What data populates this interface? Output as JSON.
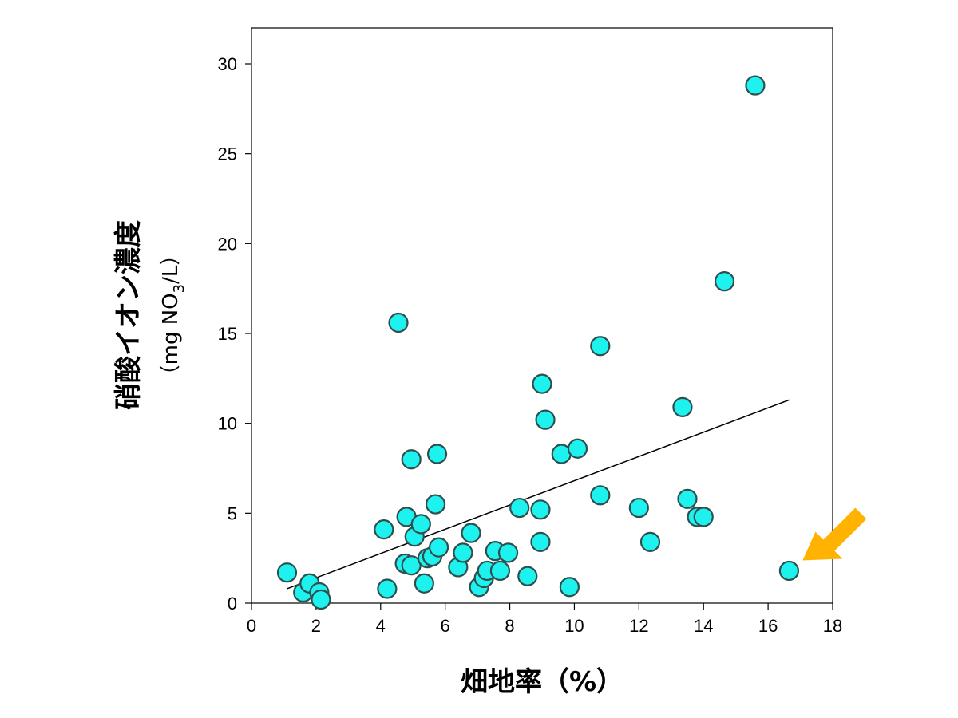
{
  "chart_data": {
    "type": "scatter",
    "xlabel": "畑地率（%）",
    "ylabel": "硝酸イオン濃度",
    "ylabel_unit": {
      "prefix": "（mg NO",
      "sub": "3",
      "suffix": "/L）"
    },
    "xlim": [
      0,
      18
    ],
    "ylim": [
      0,
      32
    ],
    "x_ticks": [
      0,
      2,
      4,
      6,
      8,
      10,
      12,
      14,
      16,
      18
    ],
    "y_ticks": [
      0,
      5,
      10,
      15,
      20,
      25,
      30
    ],
    "grid": false,
    "legend": "none",
    "colors": {
      "marker_fill": "#1ef2ee",
      "marker_edge": "#2f4f4f",
      "arrow": "#ffb300",
      "line": "#000000"
    },
    "points": [
      {
        "x": 1.1,
        "y": 1.7
      },
      {
        "x": 1.6,
        "y": 0.6
      },
      {
        "x": 1.8,
        "y": 1.1
      },
      {
        "x": 2.1,
        "y": 0.6
      },
      {
        "x": 2.15,
        "y": 0.2
      },
      {
        "x": 4.1,
        "y": 4.1
      },
      {
        "x": 4.2,
        "y": 0.8
      },
      {
        "x": 4.55,
        "y": 15.6
      },
      {
        "x": 4.75,
        "y": 2.2
      },
      {
        "x": 4.8,
        "y": 4.8
      },
      {
        "x": 4.95,
        "y": 2.1
      },
      {
        "x": 4.95,
        "y": 8.0
      },
      {
        "x": 5.05,
        "y": 3.7
      },
      {
        "x": 5.25,
        "y": 4.4
      },
      {
        "x": 5.35,
        "y": 1.1
      },
      {
        "x": 5.45,
        "y": 2.5
      },
      {
        "x": 5.6,
        "y": 2.6
      },
      {
        "x": 5.7,
        "y": 5.5
      },
      {
        "x": 5.75,
        "y": 8.3
      },
      {
        "x": 5.8,
        "y": 3.1
      },
      {
        "x": 6.4,
        "y": 2.0
      },
      {
        "x": 6.55,
        "y": 2.8
      },
      {
        "x": 6.8,
        "y": 3.9
      },
      {
        "x": 7.05,
        "y": 0.9
      },
      {
        "x": 7.2,
        "y": 1.4
      },
      {
        "x": 7.3,
        "y": 1.8
      },
      {
        "x": 7.55,
        "y": 2.9
      },
      {
        "x": 7.7,
        "y": 1.8
      },
      {
        "x": 7.95,
        "y": 2.8
      },
      {
        "x": 8.3,
        "y": 5.3
      },
      {
        "x": 8.55,
        "y": 1.5
      },
      {
        "x": 8.95,
        "y": 3.4
      },
      {
        "x": 8.95,
        "y": 5.2
      },
      {
        "x": 9.0,
        "y": 12.2
      },
      {
        "x": 9.1,
        "y": 10.2
      },
      {
        "x": 9.6,
        "y": 8.3
      },
      {
        "x": 9.85,
        "y": 0.9
      },
      {
        "x": 10.1,
        "y": 8.6
      },
      {
        "x": 10.8,
        "y": 6.0
      },
      {
        "x": 10.8,
        "y": 14.3
      },
      {
        "x": 12.0,
        "y": 5.3
      },
      {
        "x": 12.35,
        "y": 3.4
      },
      {
        "x": 13.35,
        "y": 10.9
      },
      {
        "x": 13.5,
        "y": 5.8
      },
      {
        "x": 13.8,
        "y": 4.8
      },
      {
        "x": 14.0,
        "y": 4.8
      },
      {
        "x": 14.65,
        "y": 17.9
      },
      {
        "x": 15.6,
        "y": 28.8
      },
      {
        "x": 16.65,
        "y": 1.8
      }
    ],
    "trendline": {
      "x": [
        1.1,
        16.65
      ],
      "y": [
        0.8,
        11.3
      ]
    },
    "highlight_arrow": {
      "target_x": 16.65,
      "target_y": 1.8
    }
  }
}
